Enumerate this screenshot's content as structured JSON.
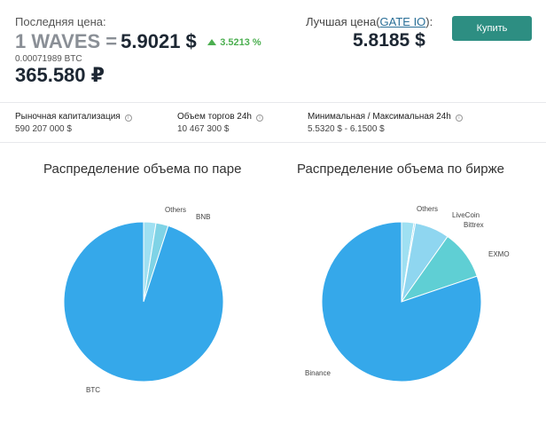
{
  "header": {
    "last_price_label": "Последняя цена:",
    "pair_text": "1 WAVES =",
    "price_usd": "5.9021 $",
    "change": "3.5213 %",
    "price_btc": "0.00071989 BTC",
    "price_rub": "365.580 ₽",
    "best_price_prefix": "Лучшая цена(",
    "best_exchange": "GATE IO",
    "best_price_suffix": "):",
    "best_price": "5.8185 $",
    "buy_button": "Купить"
  },
  "stats": [
    {
      "label": "Рыночная капитализация",
      "value": "590 207 000 $"
    },
    {
      "label": "Объем торгов 24h",
      "value": "10 467 300 $"
    },
    {
      "label": "Минимальная / Максимальная 24h",
      "value": "5.5320 $ - 6.1500 $"
    }
  ],
  "colors": {
    "pie_main": "#35a8ea",
    "pie_light1": "#9fe0f2",
    "pie_light2": "#7fd3e6",
    "pie_light3": "#8fd6f0",
    "pie_teal": "#5fcfd4",
    "positive": "#4caf50",
    "button": "#2d8e82"
  },
  "chart_data": [
    {
      "type": "pie",
      "title": "Распределение объема по паре",
      "labels": [
        "Others",
        "BNB",
        "BTC"
      ],
      "values": [
        2.5,
        2.5,
        95
      ]
    },
    {
      "type": "pie",
      "title": "Распределение объема по бирже",
      "labels": [
        "Others",
        "LiveCoin",
        "Bittrex",
        "EXMO",
        "Binance"
      ],
      "values": [
        2.5,
        0.3,
        7,
        10,
        80.2
      ]
    }
  ]
}
